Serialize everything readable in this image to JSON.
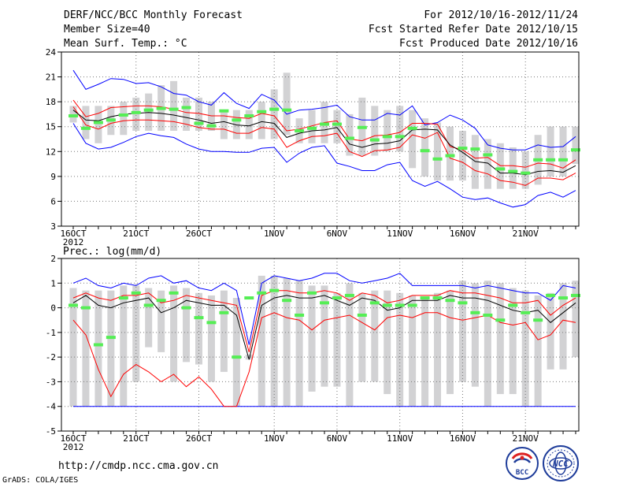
{
  "header": {
    "title": "DERF/NCC/BCC Monthly Forecast",
    "member_size": "Member Size=40",
    "variable": "Mean Surf. Temp.: °C",
    "forecast_period": "For 2012/10/16-2012/11/24",
    "started_refer_date": "Fcst Started Refer Date 2012/10/15",
    "produced_date": "Fcst Produced Date 2012/10/16"
  },
  "footer": {
    "url": "http://cmdp.ncc.cma.gov.cn",
    "grads_credit": "GrADS: COLA/IGES",
    "logo_bcc": "BCC",
    "logo_ncc": "NCC"
  },
  "colors": {
    "ensemble_range": "#d2d2d4",
    "ensemble_mean": "#000000",
    "spread_inner": "#ff0000",
    "spread_outer": "#0000ff",
    "observed_marker": "#55ee55",
    "grid": "#777777"
  },
  "chart_data": [
    {
      "name": "temperature",
      "type": "line",
      "title": "Mean Surf. Temp.: °C",
      "ylim": [
        3,
        24
      ],
      "yticks": [
        3,
        6,
        9,
        12,
        15,
        18,
        21,
        24
      ],
      "x_days": 40,
      "xticks": [
        {
          "day": 0,
          "label": "16OCT",
          "sub": "2012"
        },
        {
          "day": 5,
          "label": "21OCT"
        },
        {
          "day": 10,
          "label": "26OCT"
        },
        {
          "day": 16,
          "label": "1NOV"
        },
        {
          "day": 21,
          "label": "6NOV"
        },
        {
          "day": 26,
          "label": "11NOV"
        },
        {
          "day": 31,
          "label": "16NOV"
        },
        {
          "day": 36,
          "label": "21NOV"
        }
      ],
      "bar_low": [
        15.5,
        13.5,
        13.0,
        14.0,
        14.0,
        14.5,
        14.5,
        14.5,
        14.5,
        14.5,
        14.5,
        14.5,
        13.5,
        13.5,
        13.5,
        13.5,
        13.5,
        14.0,
        13.0,
        13.0,
        13.0,
        13.0,
        11.5,
        11.5,
        11.5,
        12.0,
        12.0,
        10.0,
        9.0,
        8.5,
        8.5,
        8.5,
        7.5,
        7.5,
        7.5,
        7.5,
        7.5,
        8.0,
        9.0,
        9.0,
        10.5
      ],
      "bar_high": [
        17.5,
        17.5,
        17.5,
        17.5,
        18.0,
        18.5,
        19.0,
        20.0,
        20.5,
        18.5,
        18.5,
        18.0,
        17.0,
        17.0,
        17.0,
        18.0,
        19.5,
        21.5,
        16.0,
        17.0,
        18.0,
        17.0,
        16.5,
        18.5,
        17.5,
        17.0,
        17.5,
        17.0,
        16.0,
        15.5,
        15.0,
        14.5,
        14.0,
        13.5,
        13.0,
        12.5,
        12.0,
        14.0,
        15.0,
        15.0,
        15.0
      ],
      "mean": [
        17.0,
        15.8,
        15.7,
        16.2,
        16.5,
        16.6,
        16.7,
        16.6,
        16.4,
        16.1,
        15.8,
        15.4,
        15.6,
        15.2,
        15.1,
        15.6,
        15.4,
        13.7,
        14.2,
        14.5,
        14.6,
        14.9,
        12.9,
        12.5,
        12.9,
        13.0,
        13.3,
        14.6,
        14.7,
        14.6,
        12.8,
        11.9,
        10.8,
        10.6,
        9.4,
        9.4,
        9.2,
        9.6,
        9.7,
        9.5,
        10.3
      ],
      "inner_upper": [
        18.2,
        16.2,
        16.6,
        17.3,
        17.4,
        17.5,
        17.5,
        17.4,
        17.1,
        16.7,
        16.6,
        16.3,
        16.3,
        16.1,
        16.0,
        16.6,
        16.3,
        14.5,
        14.7,
        15.1,
        15.5,
        15.7,
        13.5,
        13.3,
        13.9,
        14.0,
        14.3,
        15.4,
        15.4,
        15.3,
        12.6,
        12.2,
        11.2,
        11.3,
        10.3,
        10.3,
        10.1,
        10.6,
        10.5,
        10.0,
        11.0
      ],
      "inner_lower": [
        17.4,
        15.2,
        14.7,
        15.4,
        15.7,
        15.8,
        15.8,
        15.7,
        15.6,
        15.3,
        14.9,
        14.7,
        14.7,
        14.2,
        14.2,
        14.9,
        14.7,
        12.5,
        13.3,
        13.8,
        13.9,
        14.2,
        12.0,
        11.4,
        12.1,
        12.2,
        12.5,
        14.0,
        13.6,
        14.3,
        11.2,
        10.7,
        9.7,
        9.3,
        8.5,
        8.3,
        7.9,
        8.8,
        8.8,
        8.6,
        9.4
      ],
      "outer_upper": [
        21.8,
        19.5,
        20.1,
        20.8,
        20.7,
        20.2,
        20.3,
        19.8,
        19.0,
        18.8,
        18.0,
        17.6,
        19.1,
        17.8,
        17.2,
        18.9,
        18.2,
        16.5,
        17.0,
        17.1,
        17.3,
        17.6,
        16.2,
        15.8,
        15.8,
        16.6,
        16.4,
        17.5,
        15.2,
        15.5,
        16.4,
        15.8,
        14.8,
        12.8,
        12.4,
        12.2,
        12.2,
        12.8,
        12.5,
        12.6,
        13.8
      ],
      "outer_lower": [
        15.4,
        13.0,
        12.3,
        12.5,
        13.1,
        13.8,
        14.2,
        13.9,
        13.7,
        12.9,
        12.3,
        12.0,
        12.0,
        11.9,
        11.9,
        12.4,
        12.5,
        10.7,
        11.8,
        12.5,
        12.7,
        10.6,
        10.2,
        9.7,
        9.7,
        10.4,
        10.7,
        8.5,
        7.8,
        8.4,
        7.5,
        6.5,
        6.2,
        6.4,
        5.8,
        5.3,
        5.6,
        6.7,
        7.1,
        6.5,
        7.3
      ],
      "observed": [
        16.3,
        14.8,
        15.5,
        15.8,
        16.4,
        16.7,
        17.0,
        17.2,
        17.1,
        17.3,
        15.4,
        15.1,
        16.9,
        15.8,
        16.3,
        16.8,
        17.1,
        17.0,
        14.5,
        14.8,
        15.3,
        15.3,
        13.6,
        14.9,
        13.4,
        13.8,
        13.8,
        14.8,
        12.1,
        11.1,
        11.5,
        12.4,
        12.3,
        11.6,
        9.9,
        9.6,
        9.4,
        11.0,
        11.0,
        11.0,
        12.2
      ]
    },
    {
      "name": "precipitation",
      "type": "line",
      "title": "Prec.: log(mm/d)",
      "ylim": [
        -5,
        2
      ],
      "yticks": [
        -5,
        -4,
        -3,
        -2,
        -1,
        0,
        1,
        2
      ],
      "x_days": 40,
      "xticks": [
        {
          "day": 0,
          "label": "16OCT",
          "sub": "2012"
        },
        {
          "day": 5,
          "label": "21OCT"
        },
        {
          "day": 10,
          "label": "26OCT"
        },
        {
          "day": 16,
          "label": "1NOV"
        },
        {
          "day": 21,
          "label": "6NOV"
        },
        {
          "day": 26,
          "label": "11NOV"
        },
        {
          "day": 31,
          "label": "16NOV"
        },
        {
          "day": 36,
          "label": "21NOV"
        }
      ],
      "bar_low": [
        -4,
        -4,
        -4,
        -4,
        -4,
        -3,
        -1.6,
        -1.8,
        -3,
        -2.2,
        -2.3,
        -3,
        -2.6,
        -4,
        -2.1,
        -4,
        -4,
        -4,
        -4,
        -3.4,
        -3.2,
        -3.2,
        -4,
        -3,
        -3,
        -3.5,
        -4,
        -4,
        -4,
        -4,
        -3.5,
        -3,
        -3.2,
        -4,
        -3.5,
        -3.5,
        -4,
        -4,
        -2.5,
        -2.5,
        -2
      ],
      "bar_high": [
        0.8,
        0.7,
        0.7,
        0.7,
        0.9,
        0.9,
        0.8,
        0.7,
        0.9,
        0.8,
        0.6,
        0.5,
        0.7,
        0.4,
        -1.9,
        1.3,
        1.3,
        1.2,
        1.1,
        0.9,
        0.9,
        0.6,
        1.0,
        0.6,
        0.7,
        0.7,
        0.6,
        0.5,
        0.4,
        0.6,
        0.7,
        1.1,
        1.0,
        1.1,
        1.0,
        0.8,
        0.7,
        0.5,
        0.6,
        1.0,
        1.1
      ],
      "mean": [
        0.2,
        0.5,
        0.1,
        0.0,
        0.2,
        0.3,
        0.4,
        -0.2,
        0.0,
        0.3,
        0.2,
        0.1,
        0.1,
        -0.3,
        -2.1,
        0.1,
        0.4,
        0.5,
        0.4,
        0.4,
        0.5,
        0.3,
        0.1,
        0.4,
        0.3,
        -0.1,
        0.0,
        0.3,
        0.3,
        0.3,
        0.5,
        0.4,
        0.4,
        0.3,
        0.1,
        -0.1,
        -0.2,
        -0.1,
        -0.6,
        -0.2,
        0.2
      ],
      "inner_upper": [
        0.4,
        0.6,
        0.4,
        0.3,
        0.5,
        0.5,
        0.6,
        0.2,
        0.3,
        0.5,
        0.4,
        0.3,
        0.2,
        0.1,
        -1.8,
        0.5,
        0.7,
        0.7,
        0.6,
        0.6,
        0.7,
        0.6,
        0.3,
        0.6,
        0.5,
        0.2,
        0.3,
        0.5,
        0.5,
        0.5,
        0.7,
        0.6,
        0.6,
        0.5,
        0.4,
        0.2,
        0.2,
        0.3,
        -0.3,
        0.1,
        0.4
      ],
      "inner_lower": [
        -0.5,
        -1.1,
        -2.5,
        -3.6,
        -2.7,
        -2.3,
        -2.6,
        -3.0,
        -2.7,
        -3.2,
        -2.8,
        -3.3,
        -4,
        -4,
        -2.6,
        -0.4,
        -0.2,
        -0.4,
        -0.5,
        -0.9,
        -0.5,
        -0.4,
        -0.3,
        -0.6,
        -0.9,
        -0.4,
        -0.3,
        -0.4,
        -0.2,
        -0.2,
        -0.4,
        -0.5,
        -0.4,
        -0.3,
        -0.6,
        -0.7,
        -0.6,
        -1.3,
        -1.1,
        -0.5,
        -0.6
      ],
      "outer_upper": [
        1.0,
        1.2,
        0.9,
        0.8,
        1.0,
        0.9,
        1.2,
        1.3,
        1.0,
        1.1,
        0.8,
        0.7,
        1.0,
        0.7,
        -1.5,
        1.0,
        1.3,
        1.2,
        1.1,
        1.2,
        1.4,
        1.4,
        1.1,
        1.0,
        1.1,
        1.2,
        1.4,
        0.9,
        0.9,
        0.9,
        0.9,
        0.9,
        0.8,
        0.9,
        0.8,
        0.7,
        0.6,
        0.6,
        0.3,
        0.9,
        0.8
      ],
      "outer_lower": [
        -4,
        -4,
        -4,
        -4,
        -4,
        -4,
        -4,
        -4,
        -4,
        -4,
        -4,
        -4,
        -4,
        -4,
        -4,
        -4,
        -4,
        -4,
        -4,
        -4,
        -4,
        -4,
        -4,
        -4,
        -4,
        -4,
        -4,
        -4,
        -4,
        -4,
        -4,
        -4,
        -4,
        -4,
        -4,
        -4,
        -4,
        -4,
        -4,
        -4,
        -4
      ],
      "observed": [
        0.1,
        0.0,
        -1.5,
        -1.2,
        0.4,
        0.6,
        0.1,
        0.3,
        0.6,
        0.0,
        -0.4,
        -0.6,
        -0.2,
        -2.0,
        0.4,
        0.6,
        0.7,
        0.3,
        -0.3,
        0.6,
        0.2,
        0.4,
        0.5,
        -0.3,
        0.2,
        0.1,
        0.1,
        0.1,
        0.4,
        0.4,
        0.3,
        0.2,
        -0.2,
        -0.3,
        -0.5,
        0.1,
        -0.2,
        -0.5,
        0.5,
        0.4,
        0.5
      ]
    }
  ]
}
